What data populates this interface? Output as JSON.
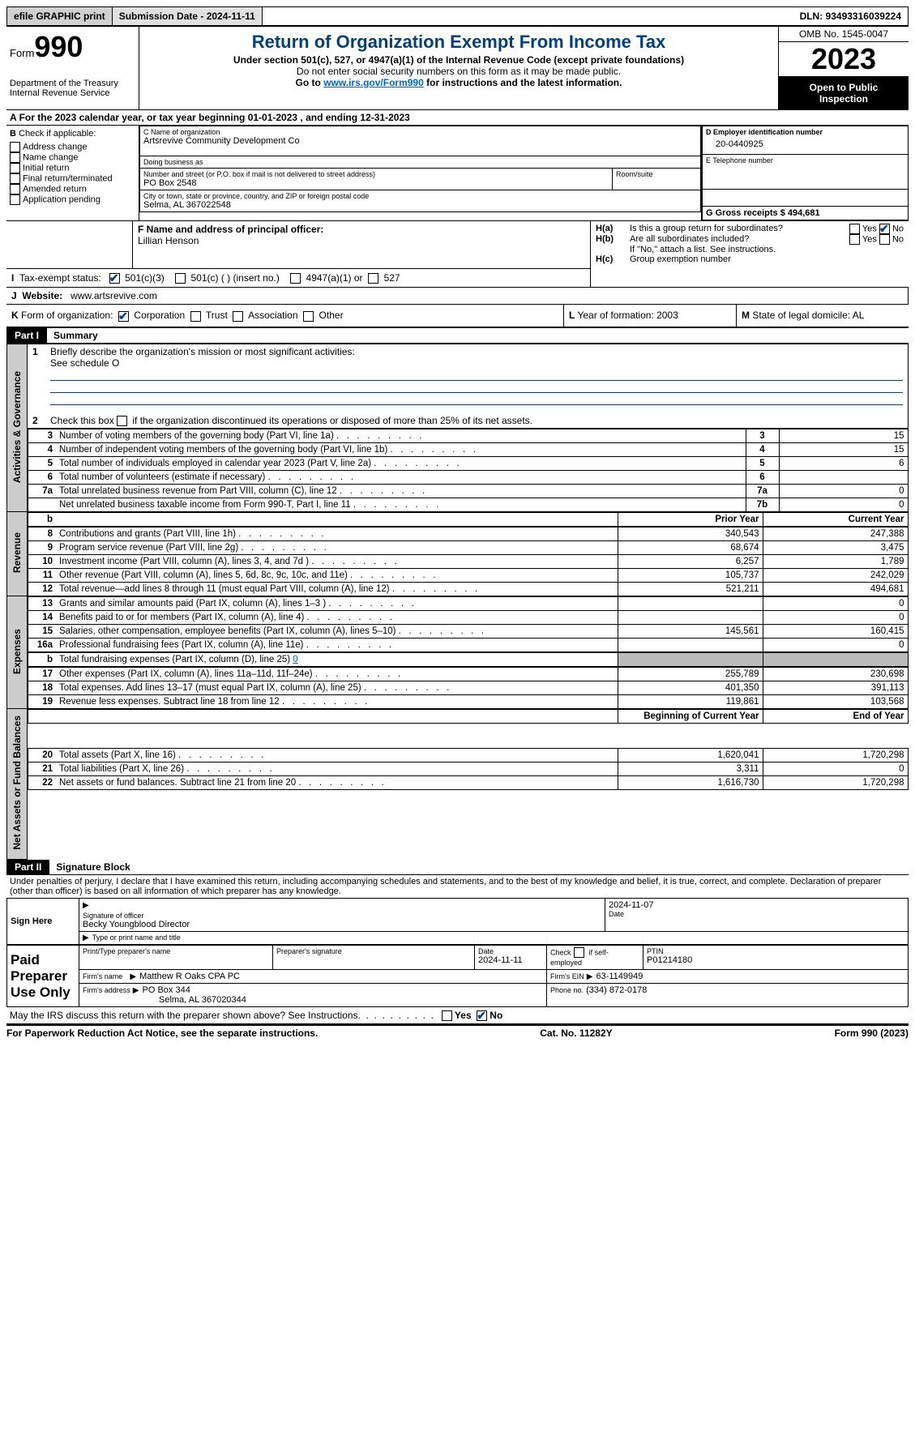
{
  "topbar": {
    "efile": "efile GRAPHIC print",
    "submission_label": "Submission Date - 2024-11-11",
    "dln_label": "DLN: 93493316039224"
  },
  "header": {
    "form_word": "Form",
    "form_num": "990",
    "dept1": "Department of the Treasury",
    "dept2": "Internal Revenue Service",
    "title": "Return of Organization Exempt From Income Tax",
    "subtitle": "Under section 501(c), 527, or 4947(a)(1) of the Internal Revenue Code (except private foundations)",
    "ssn_note": "Do not enter social security numbers on this form as it may be made public.",
    "goto": "Go to ",
    "goto_link": "www.irs.gov/Form990",
    "goto_tail": " for instructions and the latest information.",
    "omb": "OMB No. 1545-0047",
    "year": "2023",
    "inspection1": "Open to Public",
    "inspection2": "Inspection"
  },
  "line_a": {
    "prefix": "A",
    "text": "For the 2023 calendar year, or tax year beginning 01-01-2023   , and ending 12-31-2023"
  },
  "boxB": {
    "label": "B",
    "check_if": "Check if applicable:",
    "opts": [
      "Address change",
      "Name change",
      "Initial return",
      "Final return/terminated",
      "Amended return",
      "Application pending"
    ]
  },
  "boxC": {
    "name_lbl": "C Name of organization",
    "name_val": "Artsrevive Community Development Co",
    "dba_lbl": "Doing business as",
    "dba_val": "",
    "addr_lbl": "Number and street (or P.O. box if mail is not delivered to street address)",
    "addr_val": "PO Box 2548",
    "room_lbl": "Room/suite",
    "room_val": "",
    "city_lbl": "City or town, state or province, country, and ZIP or foreign postal code",
    "city_val": "Selma, AL  367022548",
    "officer_lbl": "F  Name and address of principal officer:",
    "officer_val": "Lillian Henson"
  },
  "boxD": {
    "ein_lbl": "D Employer identification number",
    "ein_val": "20-0440925",
    "phone_lbl": "E Telephone number",
    "phone_val": "",
    "receipts_lbl": "G Gross receipts $ 494,681"
  },
  "boxH": {
    "ha": "H(a)",
    "ha_q": "Is this a group return for subordinates?",
    "hb": "H(b)",
    "hb_q": "Are all subordinates included?",
    "hb_note": "If \"No,\" attach a list. See instructions.",
    "hc": "H(c)",
    "hc_q": "Group exemption number",
    "yes": "Yes",
    "no": "No"
  },
  "lineI": {
    "label": "I",
    "text": "Tax-exempt status:",
    "o1": "501(c)(3)",
    "o2": "501(c) (  ) (insert no.)",
    "o3": "4947(a)(1) or",
    "o4": "527"
  },
  "lineJ": {
    "label": "J",
    "text": "Website:",
    "val": "www.artsrevive.com"
  },
  "lineK": {
    "label": "K",
    "text": "Form of organization:",
    "o1": "Corporation",
    "o2": "Trust",
    "o3": "Association",
    "o4": "Other"
  },
  "lineL": {
    "label": "L",
    "text": "Year of formation: 2003"
  },
  "lineM": {
    "label": "M",
    "text": "State of legal domicile: AL"
  },
  "part1": {
    "hdr": "Part I",
    "title": "Summary",
    "l1": "Briefly describe the organization's mission or most significant activities:",
    "l1v": "See schedule O",
    "l2": "Check this box ",
    "l2b": " if the organization discontinued its operations or disposed of more than 25% of its net assets.",
    "tabs": {
      "ag": "Activities & Governance",
      "rev": "Revenue",
      "exp": "Expenses",
      "na": "Net Assets or Fund Balances"
    },
    "rows_ag": [
      {
        "n": "3",
        "d": "Number of voting members of the governing body (Part VI, line 1a)",
        "r": "3",
        "v": "15"
      },
      {
        "n": "4",
        "d": "Number of independent voting members of the governing body (Part VI, line 1b)",
        "r": "4",
        "v": "15"
      },
      {
        "n": "5",
        "d": "Total number of individuals employed in calendar year 2023 (Part V, line 2a)",
        "r": "5",
        "v": "6"
      },
      {
        "n": "6",
        "d": "Total number of volunteers (estimate if necessary)",
        "r": "6",
        "v": ""
      },
      {
        "n": "7a",
        "d": "Total unrelated business revenue from Part VIII, column (C), line 12",
        "r": "7a",
        "v": "0"
      },
      {
        "n": "",
        "d": "Net unrelated business taxable income from Form 990-T, Part I, line 11",
        "r": "7b",
        "v": "0"
      }
    ],
    "col_b": "b",
    "col_prior": "Prior Year",
    "col_curr": "Current Year",
    "rows_rev": [
      {
        "n": "8",
        "d": "Contributions and grants (Part VIII, line 1h)",
        "p": "340,543",
        "c": "247,388"
      },
      {
        "n": "9",
        "d": "Program service revenue (Part VIII, line 2g)",
        "p": "68,674",
        "c": "3,475"
      },
      {
        "n": "10",
        "d": "Investment income (Part VIII, column (A), lines 3, 4, and 7d )",
        "p": "6,257",
        "c": "1,789"
      },
      {
        "n": "11",
        "d": "Other revenue (Part VIII, column (A), lines 5, 6d, 8c, 9c, 10c, and 11e)",
        "p": "105,737",
        "c": "242,029"
      },
      {
        "n": "12",
        "d": "Total revenue—add lines 8 through 11 (must equal Part VIII, column (A), line 12)",
        "p": "521,211",
        "c": "494,681"
      }
    ],
    "rows_exp": [
      {
        "n": "13",
        "d": "Grants and similar amounts paid (Part IX, column (A), lines 1–3 )",
        "p": "",
        "c": "0"
      },
      {
        "n": "14",
        "d": "Benefits paid to or for members (Part IX, column (A), line 4)",
        "p": "",
        "c": "0"
      },
      {
        "n": "15",
        "d": "Salaries, other compensation, employee benefits (Part IX, column (A), lines 5–10)",
        "p": "145,561",
        "c": "160,415"
      },
      {
        "n": "16a",
        "d": "Professional fundraising fees (Part IX, column (A), line 11e)",
        "p": "",
        "c": "0"
      }
    ],
    "row16b": {
      "n": "b",
      "d": "Total fundraising expenses (Part IX, column (D), line 25) ",
      "v": "0"
    },
    "rows_exp2": [
      {
        "n": "17",
        "d": "Other expenses (Part IX, column (A), lines 11a–11d, 11f–24e)",
        "p": "255,789",
        "c": "230,698"
      },
      {
        "n": "18",
        "d": "Total expenses. Add lines 13–17 (must equal Part IX, column (A), line 25)",
        "p": "401,350",
        "c": "391,113"
      },
      {
        "n": "19",
        "d": "Revenue less expenses. Subtract line 18 from line 12",
        "p": "119,861",
        "c": "103,568"
      }
    ],
    "col_begin": "Beginning of Current Year",
    "col_end": "End of Year",
    "rows_na": [
      {
        "n": "20",
        "d": "Total assets (Part X, line 16)",
        "p": "1,620,041",
        "c": "1,720,298"
      },
      {
        "n": "21",
        "d": "Total liabilities (Part X, line 26)",
        "p": "3,311",
        "c": "0"
      },
      {
        "n": "22",
        "d": "Net assets or fund balances. Subtract line 21 from line 20",
        "p": "1,616,730",
        "c": "1,720,298"
      }
    ]
  },
  "part2": {
    "hdr": "Part II",
    "title": "Signature Block",
    "penalty": "Under penalties of perjury, I declare that I have examined this return, including accompanying schedules and statements, and to the best of my knowledge and belief, it is true, correct, and complete. Declaration of preparer (other than officer) is based on all information of which preparer has any knowledge.",
    "sign_here": "Sign Here",
    "sig_officer_lbl": "Signature of officer",
    "sig_date_lbl": "Date",
    "sig_date": "2024-11-07",
    "officer_name": "Becky Youngblood  Director",
    "type_lbl": "Type or print name and title",
    "paid": "Paid Preparer Use Only",
    "prep_name_lbl": "Print/Type preparer's name",
    "prep_sig_lbl": "Preparer's signature",
    "prep_date_lbl": "Date",
    "prep_date": "2024-11-11",
    "prep_check_lbl": "Check",
    "prep_check_tail": "if self-employed",
    "ptin_lbl": "PTIN",
    "ptin_val": "P01214180",
    "firm_name_lbl": "Firm's name",
    "firm_name": "Matthew R Oaks CPA PC",
    "firm_ein_lbl": "Firm's EIN",
    "firm_ein": "63-1149949",
    "firm_addr_lbl": "Firm's address",
    "firm_addr1": "PO Box 344",
    "firm_addr2": "Selma, AL  367020344",
    "firm_phone_lbl": "Phone no.",
    "firm_phone": "(334) 872-0178",
    "discuss": "May the IRS discuss this return with the preparer shown above? See Instructions.",
    "yes": "Yes",
    "no": "No"
  },
  "footer": {
    "pra": "For Paperwork Reduction Act Notice, see the separate instructions.",
    "cat": "Cat. No. 11282Y",
    "form": "Form 990 (2023)"
  }
}
